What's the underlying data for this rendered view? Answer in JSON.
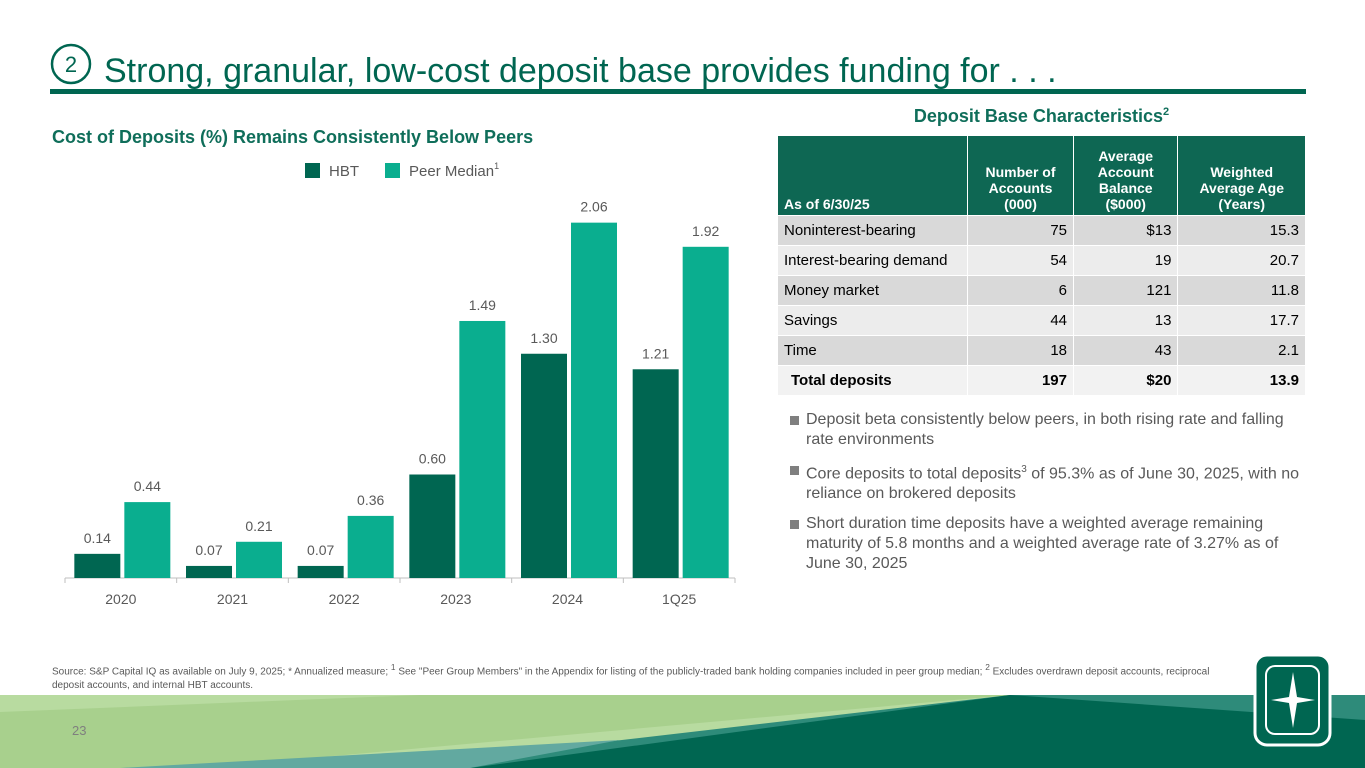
{
  "slide": {
    "section_number": "2",
    "title": "Strong, granular, low-cost deposit base provides funding for . . .",
    "page_number": "23"
  },
  "chart_data": {
    "type": "bar",
    "title": "Cost of Deposits (%) Remains Consistently Below Peers",
    "categories": [
      "2020",
      "2021",
      "2022",
      "2023",
      "2024",
      "1Q25"
    ],
    "series": [
      {
        "name": "HBT",
        "color": "#006651",
        "values": [
          0.14,
          0.07,
          0.07,
          0.6,
          1.3,
          1.21
        ],
        "value_labels": [
          "0.14",
          "0.07",
          "0.07",
          "0.60",
          "1.30",
          "1.21"
        ]
      },
      {
        "name": "Peer Median",
        "name_note": "1",
        "color": "#0aae8f",
        "values": [
          0.44,
          0.21,
          0.36,
          1.49,
          2.06,
          1.92
        ],
        "value_labels": [
          "0.44",
          "0.21",
          "0.36",
          "1.49",
          "2.06",
          "1.92"
        ]
      }
    ]
  },
  "table": {
    "title": "Deposit Base Characteristics",
    "title_note": "2",
    "header": [
      "As of 6/30/25",
      "Number of Accounts (000)",
      "Average Account Balance ($000)",
      "Weighted Average Age (Years)"
    ],
    "rows": [
      [
        "Noninterest-bearing",
        "75",
        "$13",
        "15.3"
      ],
      [
        "Interest-bearing demand",
        "54",
        "19",
        "20.7"
      ],
      [
        "Money market",
        "6",
        "121",
        "11.8"
      ],
      [
        "Savings",
        "44",
        "13",
        "17.7"
      ],
      [
        "Time",
        "18",
        "43",
        "2.1"
      ],
      [
        "Total deposits",
        "197",
        "$20",
        "13.9"
      ]
    ]
  },
  "bullets": [
    [
      "Deposit beta consistently below peers, in both rising rate and falling rate environments"
    ],
    [
      "Core deposits to total deposits",
      "3",
      " of 95.3% as of June 30, 2025, with no reliance on brokered deposits"
    ],
    [
      "Short duration time deposits have a weighted average remaining maturity of 5.8 months and a weighted average rate of 3.27% as of June 30, 2025"
    ]
  ],
  "footnote": [
    "Source: S&P Capital IQ as available on July 9, 2025; * Annualized measure; ",
    "1",
    " See \"Peer Group Members\" in the Appendix for listing of the publicly-traded bank holding companies included in peer group median; ",
    "2",
    " Excludes overdrawn deposit accounts, reciprocal deposit accounts, and internal HBT accounts."
  ]
}
